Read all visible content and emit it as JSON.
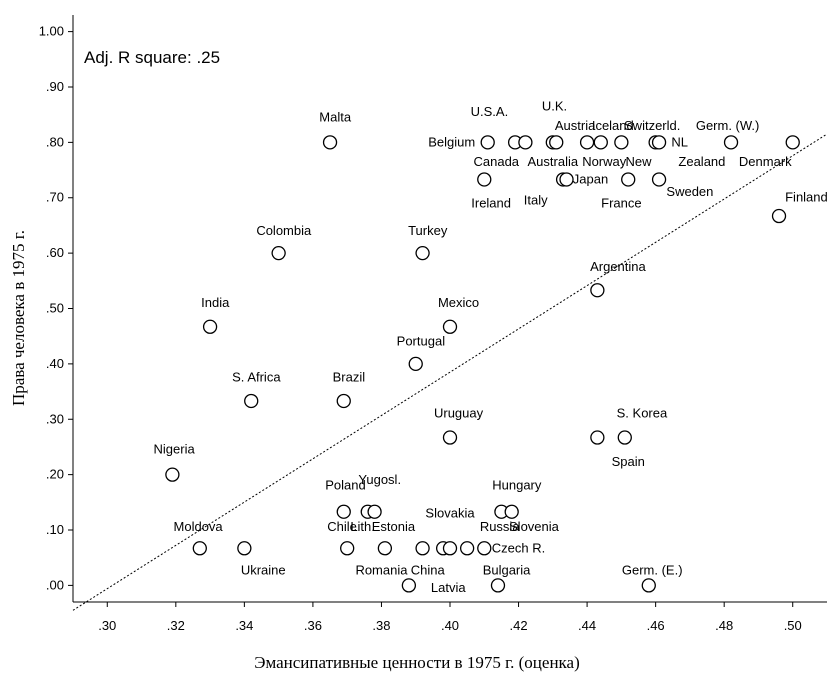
{
  "chart_data": {
    "type": "scatter",
    "title": "",
    "xlabel": "Эмансипативные ценности в 1975 г. (оценка)",
    "ylabel": "Права человека в 1975 г.",
    "annotation": "Adj. R square: .25",
    "xlim": [
      0.29,
      0.51
    ],
    "ylim": [
      -0.03,
      1.03
    ],
    "x_ticks": [
      {
        "value": 0.3,
        "label": ".30"
      },
      {
        "value": 0.32,
        "label": ".32"
      },
      {
        "value": 0.34,
        "label": ".34"
      },
      {
        "value": 0.36,
        "label": ".36"
      },
      {
        "value": 0.38,
        "label": ".38"
      },
      {
        "value": 0.4,
        "label": ".40"
      },
      {
        "value": 0.42,
        "label": ".42"
      },
      {
        "value": 0.44,
        "label": ".44"
      },
      {
        "value": 0.46,
        "label": ".46"
      },
      {
        "value": 0.48,
        "label": ".48"
      },
      {
        "value": 0.5,
        "label": ".50"
      }
    ],
    "y_ticks": [
      {
        "value": 0.0,
        "label": ".00"
      },
      {
        "value": 0.1,
        "label": ".10"
      },
      {
        "value": 0.2,
        "label": ".20"
      },
      {
        "value": 0.3,
        "label": ".30"
      },
      {
        "value": 0.4,
        "label": ".40"
      },
      {
        "value": 0.5,
        "label": ".50"
      },
      {
        "value": 0.6,
        "label": ".60"
      },
      {
        "value": 0.7,
        "label": ".70"
      },
      {
        "value": 0.8,
        "label": ".80"
      },
      {
        "value": 0.9,
        "label": ".90"
      },
      {
        "value": 1.0,
        "label": "1.00"
      }
    ],
    "points": [
      {
        "x": 0.319,
        "y": 0.2
      },
      {
        "x": 0.327,
        "y": 0.067
      },
      {
        "x": 0.33,
        "y": 0.467
      },
      {
        "x": 0.34,
        "y": 0.067
      },
      {
        "x": 0.342,
        "y": 0.333
      },
      {
        "x": 0.35,
        "y": 0.6
      },
      {
        "x": 0.365,
        "y": 0.8
      },
      {
        "x": 0.369,
        "y": 0.333
      },
      {
        "x": 0.369,
        "y": 0.133
      },
      {
        "x": 0.37,
        "y": 0.067
      },
      {
        "x": 0.376,
        "y": 0.133
      },
      {
        "x": 0.378,
        "y": 0.133
      },
      {
        "x": 0.381,
        "y": 0.067
      },
      {
        "x": 0.388,
        "y": 0.0
      },
      {
        "x": 0.39,
        "y": 0.4
      },
      {
        "x": 0.392,
        "y": 0.6
      },
      {
        "x": 0.392,
        "y": 0.067
      },
      {
        "x": 0.398,
        "y": 0.067
      },
      {
        "x": 0.4,
        "y": 0.067
      },
      {
        "x": 0.4,
        "y": 0.467
      },
      {
        "x": 0.4,
        "y": 0.267
      },
      {
        "x": 0.405,
        "y": 0.067
      },
      {
        "x": 0.41,
        "y": 0.733
      },
      {
        "x": 0.41,
        "y": 0.067
      },
      {
        "x": 0.411,
        "y": 0.8
      },
      {
        "x": 0.414,
        "y": 0.0
      },
      {
        "x": 0.415,
        "y": 0.133
      },
      {
        "x": 0.418,
        "y": 0.133
      },
      {
        "x": 0.419,
        "y": 0.8
      },
      {
        "x": 0.422,
        "y": 0.8
      },
      {
        "x": 0.43,
        "y": 0.8
      },
      {
        "x": 0.431,
        "y": 0.8
      },
      {
        "x": 0.433,
        "y": 0.733
      },
      {
        "x": 0.434,
        "y": 0.733
      },
      {
        "x": 0.44,
        "y": 0.8
      },
      {
        "x": 0.443,
        "y": 0.533
      },
      {
        "x": 0.443,
        "y": 0.267
      },
      {
        "x": 0.444,
        "y": 0.8
      },
      {
        "x": 0.45,
        "y": 0.8
      },
      {
        "x": 0.451,
        "y": 0.267
      },
      {
        "x": 0.452,
        "y": 0.733
      },
      {
        "x": 0.458,
        "y": 0.0
      },
      {
        "x": 0.46,
        "y": 0.8
      },
      {
        "x": 0.461,
        "y": 0.8
      },
      {
        "x": 0.461,
        "y": 0.733
      },
      {
        "x": 0.482,
        "y": 0.8
      },
      {
        "x": 0.496,
        "y": 0.667
      },
      {
        "x": 0.5,
        "y": 0.8
      }
    ],
    "point_labels": [
      {
        "text": "Nigeria",
        "x": 0.3195,
        "y": 0.245
      },
      {
        "text": "Moldova",
        "x": 0.3265,
        "y": 0.105
      },
      {
        "text": "India",
        "x": 0.3315,
        "y": 0.51
      },
      {
        "text": "Ukraine",
        "x": 0.3455,
        "y": 0.027
      },
      {
        "text": "S. Africa",
        "x": 0.3435,
        "y": 0.375
      },
      {
        "text": "Colombia",
        "x": 0.3515,
        "y": 0.64
      },
      {
        "text": "Malta",
        "x": 0.3665,
        "y": 0.845
      },
      {
        "text": "Brazil",
        "x": 0.3705,
        "y": 0.375
      },
      {
        "text": "Poland",
        "x": 0.3695,
        "y": 0.18
      },
      {
        "text": "Yugosl.",
        "x": 0.3795,
        "y": 0.19
      },
      {
        "text": "Chile",
        "x": 0.3685,
        "y": 0.105
      },
      {
        "text": "Lith.",
        "x": 0.3745,
        "y": 0.105
      },
      {
        "text": "Estonia",
        "x": 0.3835,
        "y": 0.105
      },
      {
        "text": "Romania",
        "x": 0.38,
        "y": 0.027
      },
      {
        "text": "China",
        "x": 0.3935,
        "y": 0.027
      },
      {
        "text": "Latvia",
        "x": 0.3995,
        "y": -0.005
      },
      {
        "text": "Portugal",
        "x": 0.3915,
        "y": 0.44
      },
      {
        "text": "Turkey",
        "x": 0.3935,
        "y": 0.64
      },
      {
        "text": "Mexico",
        "x": 0.4025,
        "y": 0.51
      },
      {
        "text": "Uruguay",
        "x": 0.4025,
        "y": 0.31
      },
      {
        "text": "Slovakia",
        "x": 0.4,
        "y": 0.13
      },
      {
        "text": "Russia",
        "x": 0.4145,
        "y": 0.105
      },
      {
        "text": "Bulgaria",
        "x": 0.4165,
        "y": 0.027
      },
      {
        "text": "Hungary",
        "x": 0.4195,
        "y": 0.18
      },
      {
        "text": "Slovenia",
        "x": 0.4245,
        "y": 0.105
      },
      {
        "text": "Czech R.",
        "x": 0.42,
        "y": 0.067
      },
      {
        "text": "U.S.A.",
        "x": 0.4115,
        "y": 0.855
      },
      {
        "text": "Belgium",
        "x": 0.4005,
        "y": 0.8
      },
      {
        "text": "Canada",
        "x": 0.4135,
        "y": 0.765
      },
      {
        "text": "Australia",
        "x": 0.43,
        "y": 0.765
      },
      {
        "text": "Ireland",
        "x": 0.412,
        "y": 0.69
      },
      {
        "text": "Italy",
        "x": 0.425,
        "y": 0.695
      },
      {
        "text": "U.K.",
        "x": 0.4305,
        "y": 0.865
      },
      {
        "text": "Austria",
        "x": 0.4365,
        "y": 0.83
      },
      {
        "text": "Iceland",
        "x": 0.4475,
        "y": 0.83
      },
      {
        "text": "Switzerld.",
        "x": 0.459,
        "y": 0.83
      },
      {
        "text": "Germ. (W.)",
        "x": 0.481,
        "y": 0.83
      },
      {
        "text": "NL",
        "x": 0.467,
        "y": 0.8
      },
      {
        "text": "Norway",
        "x": 0.445,
        "y": 0.765
      },
      {
        "text": "New",
        "x": 0.455,
        "y": 0.765
      },
      {
        "text": "Zealand",
        "x": 0.4735,
        "y": 0.765
      },
      {
        "text": "Denmark",
        "x": 0.492,
        "y": 0.765
      },
      {
        "text": "Japan",
        "x": 0.441,
        "y": 0.733
      },
      {
        "text": "France",
        "x": 0.45,
        "y": 0.69
      },
      {
        "text": "Sweden",
        "x": 0.47,
        "y": 0.71
      },
      {
        "text": "Finland",
        "x": 0.504,
        "y": 0.7
      },
      {
        "text": "Argentina",
        "x": 0.449,
        "y": 0.575
      },
      {
        "text": "S. Korea",
        "x": 0.456,
        "y": 0.31
      },
      {
        "text": "Spain",
        "x": 0.452,
        "y": 0.223
      },
      {
        "text": "Germ. (E.)",
        "x": 0.459,
        "y": 0.027
      }
    ],
    "fit_line": {
      "x": [
        0.29,
        0.51
      ],
      "y": [
        -0.045,
        0.815
      ],
      "style": "dotted"
    },
    "grid": false,
    "legend": false
  }
}
